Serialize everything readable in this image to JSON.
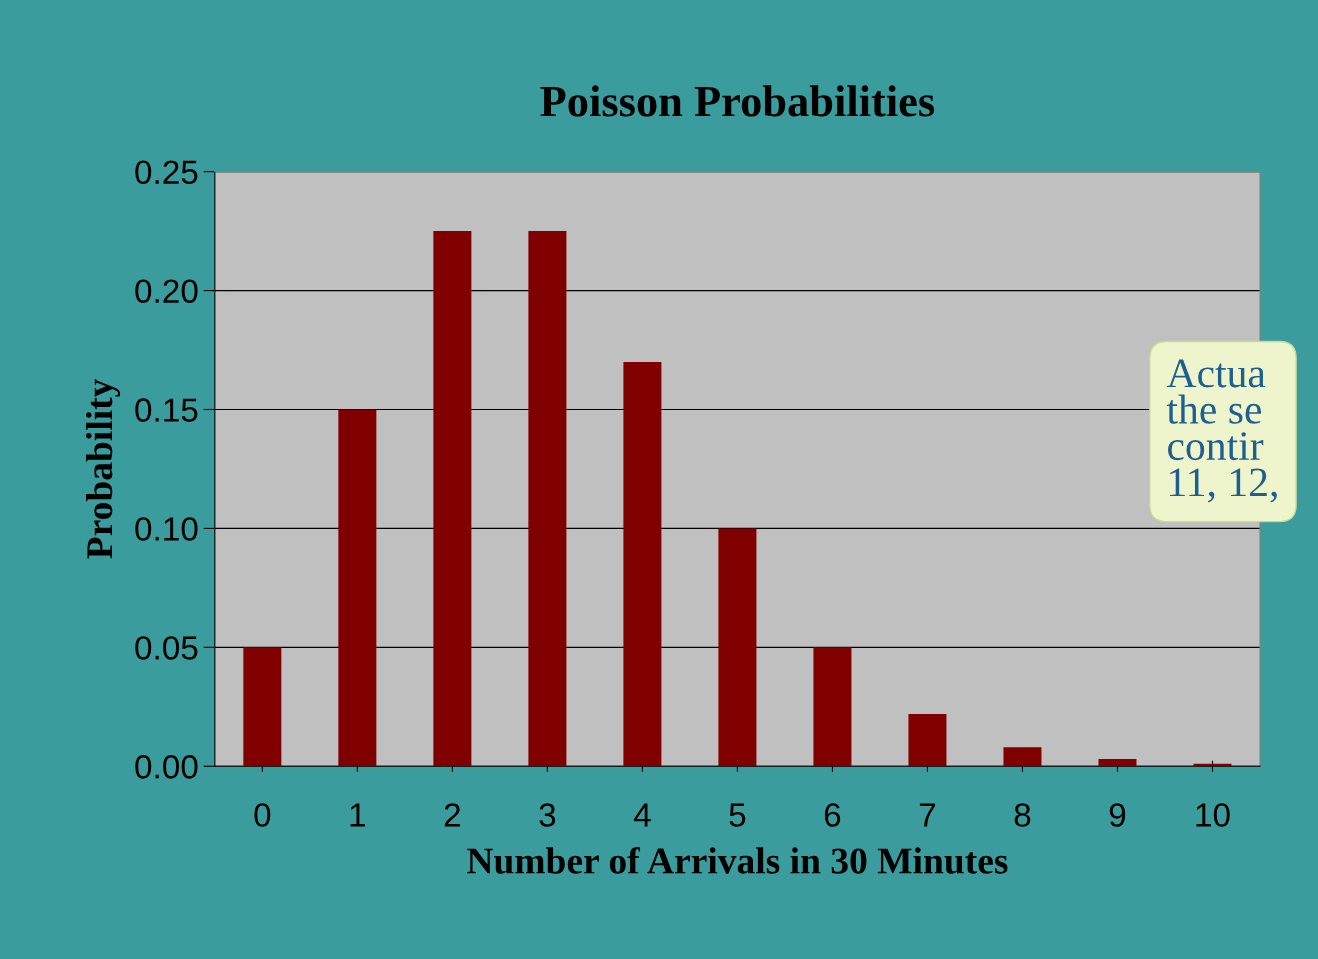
{
  "chart_data": {
    "type": "bar",
    "title": "Poisson Probabilities",
    "xlabel": "Number of Arrivals in 30 Minutes",
    "ylabel": "Probability",
    "categories": [
      "0",
      "1",
      "2",
      "3",
      "4",
      "5",
      "6",
      "7",
      "8",
      "9",
      "10"
    ],
    "values": [
      0.05,
      0.15,
      0.225,
      0.225,
      0.17,
      0.1,
      0.05,
      0.022,
      0.008,
      0.003,
      0.001
    ],
    "color": "#800000",
    "ylim": [
      0,
      0.25
    ],
    "yticks": [
      {
        "value": 0,
        "label": "0.00"
      },
      {
        "value": 0.05,
        "label": "0.05"
      },
      {
        "value": 0.1,
        "label": "0.10"
      },
      {
        "value": 0.15,
        "label": "0.15"
      },
      {
        "value": 0.2,
        "label": "0.20"
      },
      {
        "value": 0.25,
        "label": "0.25"
      }
    ],
    "grid": "y",
    "annotations": [
      "Actua\nthe se\ncontir\n11, 12,"
    ]
  }
}
